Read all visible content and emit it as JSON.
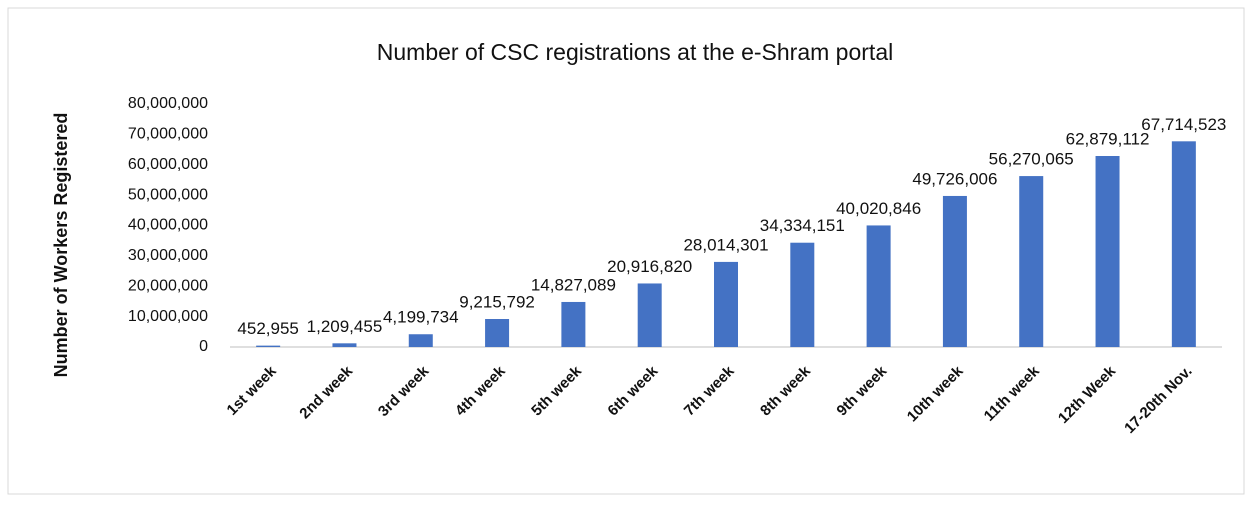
{
  "chart_data": {
    "type": "bar",
    "title": "Number of CSC registrations at the e-Shram portal",
    "y_label": "Number of Workers Registered",
    "categories": [
      "1st week",
      "2nd week",
      "3rd week",
      "4th week",
      "5th week",
      "6th week",
      "7th week",
      "8th week",
      "9th week",
      "10th week",
      "11th week",
      "12th Week",
      "17-20th Nov."
    ],
    "values": [
      452955,
      1209455,
      4199734,
      9215792,
      14827089,
      20916820,
      28014301,
      34334151,
      40020846,
      49726006,
      56270065,
      62879112,
      67714523
    ],
    "value_labels": [
      "452,955",
      "1,209,455",
      "4,199,734",
      "9,215,792",
      "14,827,089",
      "20,916,820",
      "28,014,301",
      "34,334,151",
      "40,020,846",
      "49,726,006",
      "56,270,065",
      "62,879,112",
      "67,714,523"
    ],
    "color": "#4472c4",
    "ylim": [
      0,
      80000000
    ],
    "yticks": [
      0,
      {
        "value": 10000000,
        "label": "10,000,000"
      },
      {
        "value": 20000000,
        "label": "20,000,000"
      },
      {
        "value": 30000000,
        "label": "30,000,000"
      },
      {
        "value": 40000000,
        "label": "40,000,000"
      },
      {
        "value": 50000000,
        "label": "50,000,000"
      },
      {
        "value": 60000000,
        "label": "60,000,000"
      },
      {
        "value": 70000000,
        "label": "70,000,000"
      },
      {
        "value": 80000000,
        "label": "80,000,000"
      }
    ],
    "grid": false
  }
}
